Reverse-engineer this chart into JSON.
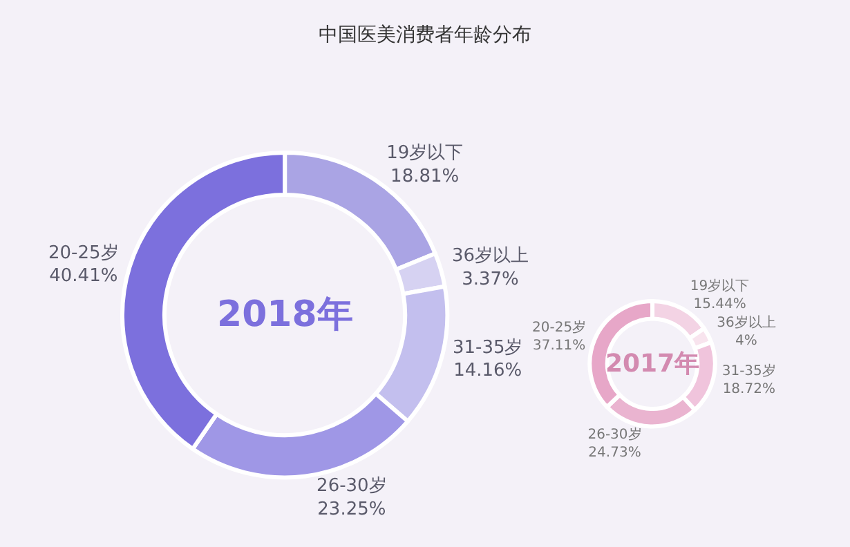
{
  "chart_data": [
    {
      "type": "donut",
      "title": "中国医美消费者年龄分布",
      "annotations": [
        "2018年"
      ],
      "categories": [
        "19岁以下",
        "36岁以上",
        "31-35岁",
        "26-30岁",
        "20-25岁"
      ],
      "values": [
        18.81,
        3.37,
        14.16,
        23.25,
        40.41
      ],
      "value_labels": [
        "18.81%",
        "3.37%",
        "14.16%",
        "23.25%",
        "40.41%"
      ],
      "colors": [
        "#aaa4e4",
        "#d6d2f2",
        "#c3bfee",
        "#9f97e6",
        "#7c70dd"
      ],
      "legend": false
    },
    {
      "type": "donut",
      "annotations": [
        "2017年"
      ],
      "categories": [
        "19岁以下",
        "36岁以上",
        "31-35岁",
        "26-30岁",
        "20-25岁"
      ],
      "values": [
        15.44,
        4,
        18.72,
        24.73,
        37.11
      ],
      "value_labels": [
        "15.44%",
        "4%",
        "18.72%",
        "24.73%",
        "37.11%"
      ],
      "colors": [
        "#f3d3e4",
        "#f8e4ee",
        "#f0c4dc",
        "#eab4d0",
        "#e7a7c8"
      ],
      "legend": false
    }
  ]
}
